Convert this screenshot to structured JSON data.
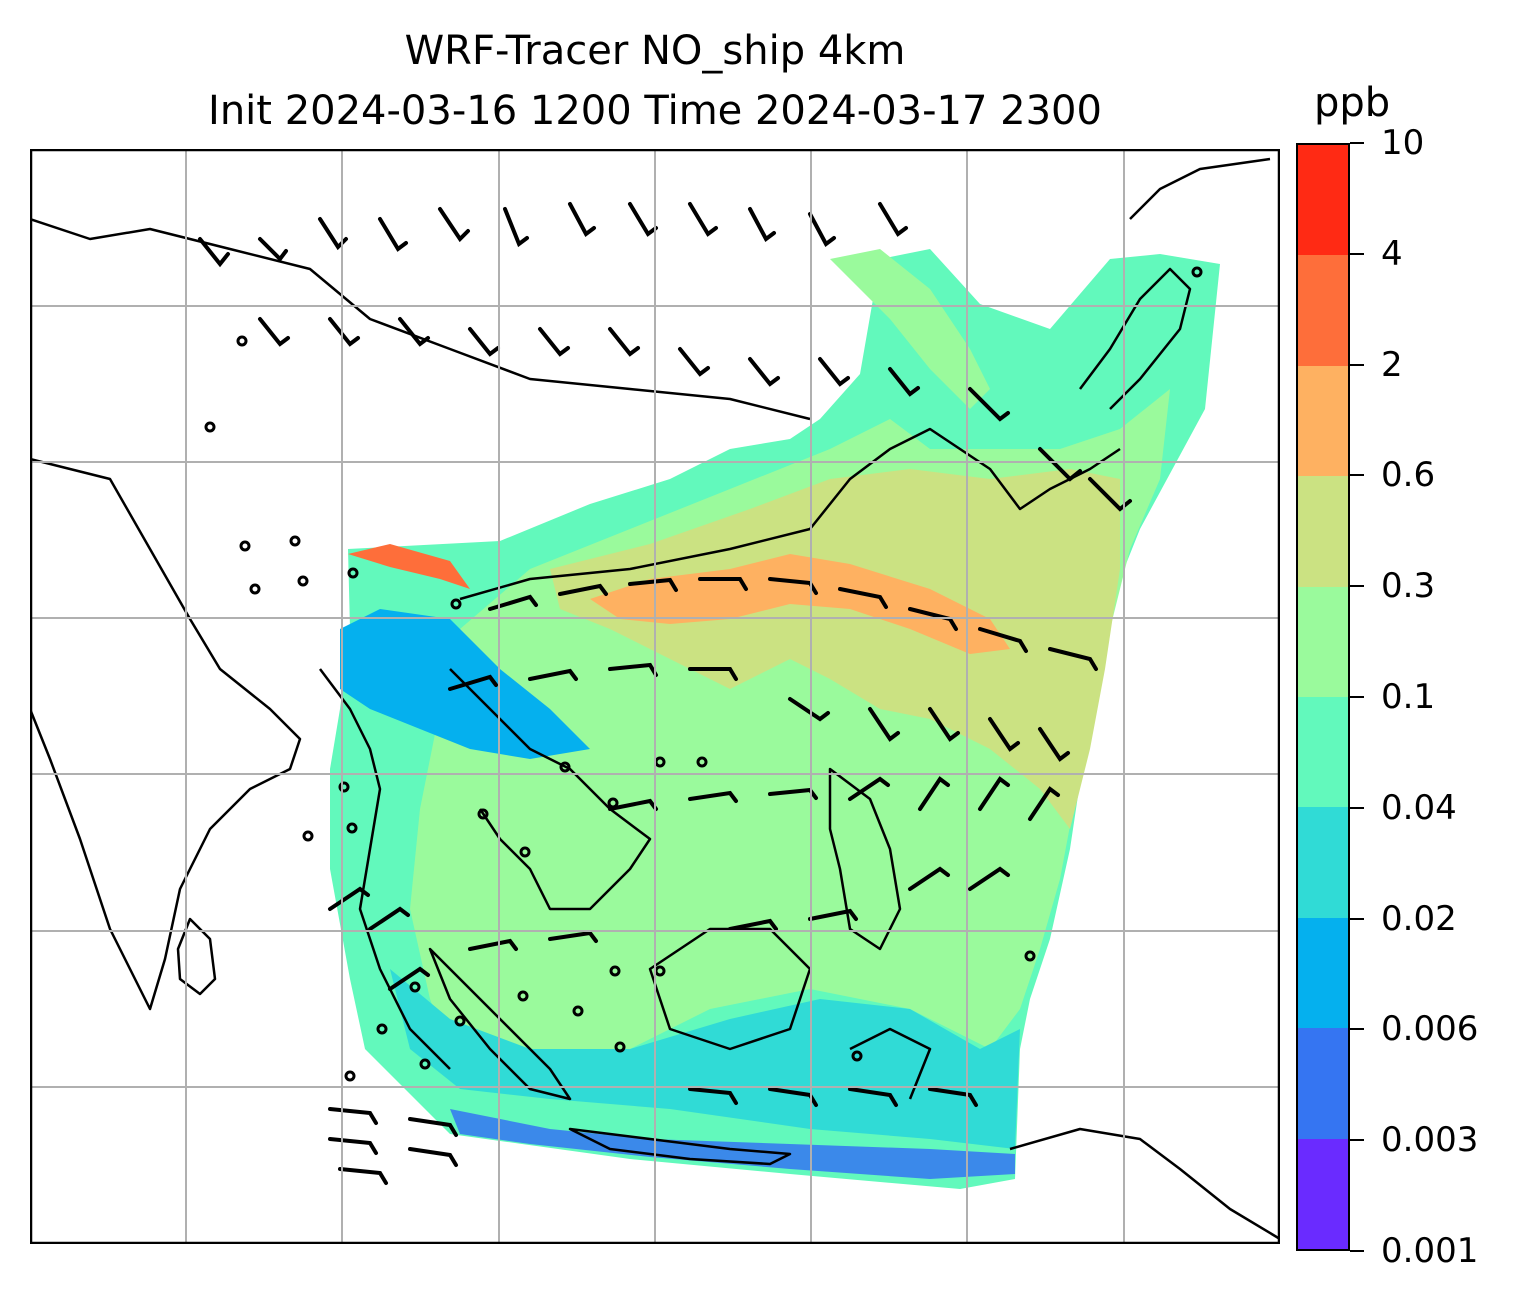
{
  "title": {
    "line1": "WRF-Tracer NO_ship 4km",
    "line2": "Init 2024-03-16 1200 Time 2024-03-17 2300"
  },
  "map": {
    "projection_grid": true,
    "grid_color": "#b0b0b0",
    "coastline_color": "#000000",
    "field": "NO_ship tracer concentration",
    "wind": "barbs (black)"
  },
  "colorbar": {
    "unit": "ppb",
    "levels": [
      "0.001",
      "0.003",
      "0.006",
      "0.02",
      "0.04",
      "0.1",
      "0.3",
      "0.6",
      "2",
      "4",
      "10"
    ],
    "colors": [
      "#6a2bff",
      "#3575f2",
      "#05b0ee",
      "#30dbd6",
      "#62f9bc",
      "#9afa9c",
      "#cbe282",
      "#feb161",
      "#fe6e3a",
      "#ff2a14"
    ]
  }
}
